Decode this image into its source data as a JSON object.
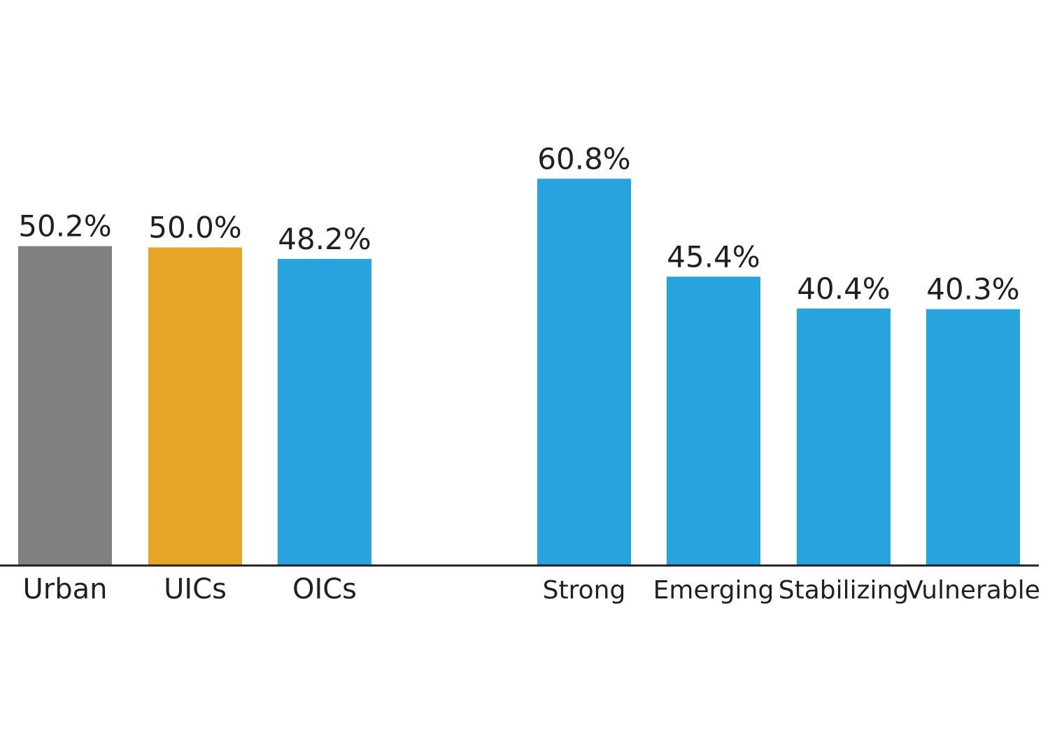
{
  "chart_data": {
    "type": "bar",
    "categories": [
      "Urban",
      "UICs",
      "OICs",
      "Strong",
      "Emerging",
      "Stabilizing",
      "Vulnerable"
    ],
    "values": [
      50.2,
      50.0,
      48.2,
      60.8,
      45.4,
      40.4,
      40.3
    ],
    "value_labels": [
      "50.2%",
      "50.0%",
      "48.2%",
      "60.8%",
      "45.4%",
      "40.4%",
      "40.3%"
    ],
    "bar_colors": [
      "#808080",
      "#e5a527",
      "#27a3dd",
      "#27a3dd",
      "#27a3dd",
      "#27a3dd",
      "#27a3dd"
    ],
    "groups": [
      [
        "Urban",
        "UICs",
        "OICs"
      ],
      [
        "Strong",
        "Emerging",
        "Stabilizing",
        "Vulnerable"
      ]
    ],
    "ylim": [
      0,
      100
    ],
    "grid": false,
    "legend": "none",
    "axis_color": "#231f20"
  }
}
